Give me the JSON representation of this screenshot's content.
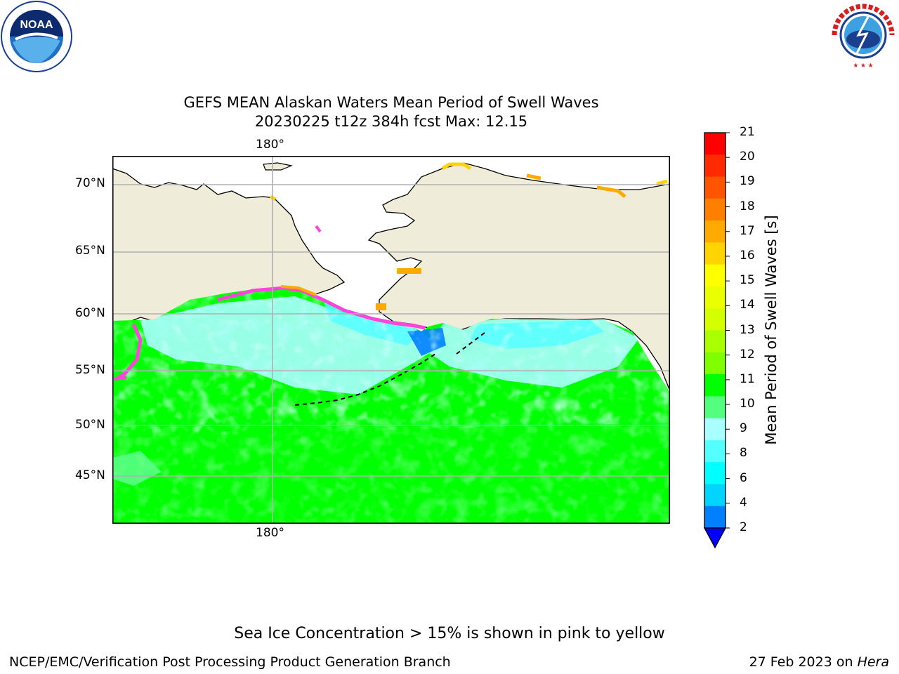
{
  "title_line1": "GEFS MEAN Alaskan Waters Mean Period of Swell Waves",
  "title_line2": "20230225 t12z 384h fcst   Max: 12.15",
  "map": {
    "lat_labels": [
      "70°N",
      "65°N",
      "60°N",
      "55°N",
      "50°N",
      "45°N"
    ],
    "lon_label_top": "180°",
    "lon_label_bottom": "180°",
    "land_color": "#efedda",
    "grid_color": "#b0b0b0"
  },
  "colorbar": {
    "label": "Mean Period of Swell Waves [s]",
    "ticks": [
      "21",
      "20",
      "19",
      "18",
      "17",
      "16",
      "15",
      "14",
      "13",
      "12",
      "11",
      "10",
      "9",
      "8",
      "6",
      "4",
      "2"
    ],
    "colors": [
      "#ff0000",
      "#ff2a00",
      "#ff5500",
      "#ff7f00",
      "#ffaa00",
      "#ffd400",
      "#ffff00",
      "#eaff00",
      "#d4ff00",
      "#aaff00",
      "#7fff00",
      "#00ff00",
      "#54ff7f",
      "#a9ffff",
      "#54ffff",
      "#00ffff",
      "#00d4ff",
      "#007fff"
    ],
    "extend_color": "#0000ff"
  },
  "chart_data": {
    "type": "heatmap",
    "title": "GEFS MEAN Alaskan Waters Mean Period of Swell Waves",
    "subtitle": "20230225 t12z 384h fcst   Max: 12.15",
    "colorbar_label": "Mean Period of Swell Waves [s]",
    "colorbar_range": [
      2,
      21
    ],
    "max_value": 12.15,
    "ylabels": [
      "70°N",
      "65°N",
      "60°N",
      "55°N",
      "50°N",
      "45°N"
    ],
    "xlabels": [
      "180°"
    ]
  },
  "caption": "Sea Ice Concentration > 15% is shown in pink to yellow",
  "footer_left": "NCEP/EMC/Verification Post Processing Product Generation Branch",
  "footer_right_prefix": "27 Feb 2023 on ",
  "footer_right_italic": "Hera",
  "logos": {
    "noaa_text": "NOAA",
    "nws_text": "NATIONAL WEATHER SERVICE"
  }
}
